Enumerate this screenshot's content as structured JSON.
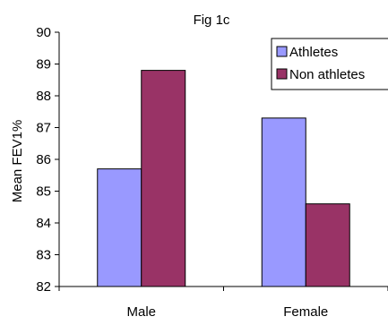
{
  "chart_data": {
    "type": "bar",
    "title": "Fig 1c",
    "xlabel": "",
    "ylabel": "Mean FEV1%",
    "categories": [
      "Male",
      "Female"
    ],
    "series": [
      {
        "name": "Athletes",
        "values": [
          85.7,
          87.3
        ],
        "color": "#9999ff"
      },
      {
        "name": "Non athletes",
        "values": [
          88.8,
          84.6
        ],
        "color": "#993366"
      }
    ],
    "ylim": [
      82,
      90
    ],
    "yticks": [
      82,
      83,
      84,
      85,
      86,
      87,
      88,
      89,
      90
    ],
    "grid": false,
    "legend": "top-right"
  }
}
